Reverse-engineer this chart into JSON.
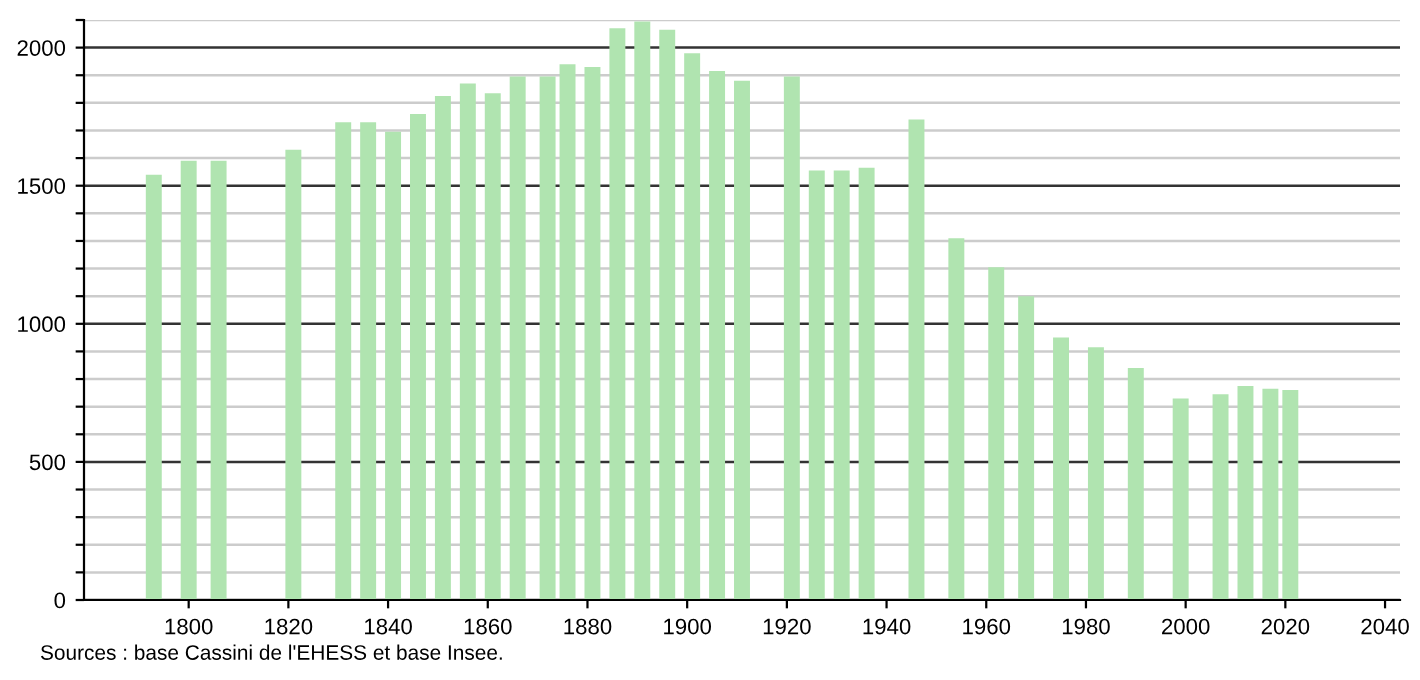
{
  "chart_data": {
    "type": "bar",
    "color": "#b0e4b0",
    "x": [
      1793,
      1800,
      1806,
      1821,
      1831,
      1836,
      1841,
      1846,
      1851,
      1856,
      1861,
      1866,
      1872,
      1876,
      1881,
      1886,
      1891,
      1896,
      1901,
      1906,
      1911,
      1921,
      1926,
      1931,
      1936,
      1946,
      1954,
      1962,
      1968,
      1975,
      1982,
      1990,
      1999,
      2007,
      2012,
      2017,
      2021
    ],
    "values": [
      1540,
      1590,
      1590,
      1630,
      1730,
      1730,
      1695,
      1760,
      1825,
      1870,
      1835,
      1895,
      1895,
      1940,
      1930,
      2070,
      2095,
      2065,
      1980,
      1915,
      1880,
      1895,
      1555,
      1555,
      1565,
      1740,
      1310,
      1205,
      1100,
      950,
      915,
      840,
      730,
      745,
      775,
      765,
      760
    ],
    "xlim": [
      1779,
      2043
    ],
    "xticks": [
      1800,
      1820,
      1840,
      1860,
      1880,
      1900,
      1920,
      1940,
      1960,
      1980,
      2000,
      2020,
      2040
    ],
    "ylim": [
      0,
      2100
    ],
    "yticks": [
      0,
      {
        "value": 100,
        "label": null
      },
      {
        "value": 200,
        "label": null
      },
      {
        "value": 300,
        "label": null
      },
      {
        "value": 400,
        "label": null
      },
      500,
      {
        "value": 600,
        "label": null
      },
      {
        "value": 700,
        "label": null
      },
      {
        "value": 800,
        "label": null
      },
      {
        "value": 900,
        "label": null
      },
      1000,
      {
        "value": 1100,
        "label": null
      },
      {
        "value": 1200,
        "label": null
      },
      {
        "value": 1300,
        "label": null
      },
      {
        "value": 1400,
        "label": null
      },
      1500,
      {
        "value": 1600,
        "label": null
      },
      {
        "value": 1700,
        "label": null
      },
      {
        "value": 1800,
        "label": null
      },
      {
        "value": 1900,
        "label": null
      },
      2000,
      {
        "value": 2100,
        "label": null
      }
    ],
    "grid": "y",
    "annotations": [
      "Sources : base Cassini de l'EHESS et base Insee."
    ]
  }
}
